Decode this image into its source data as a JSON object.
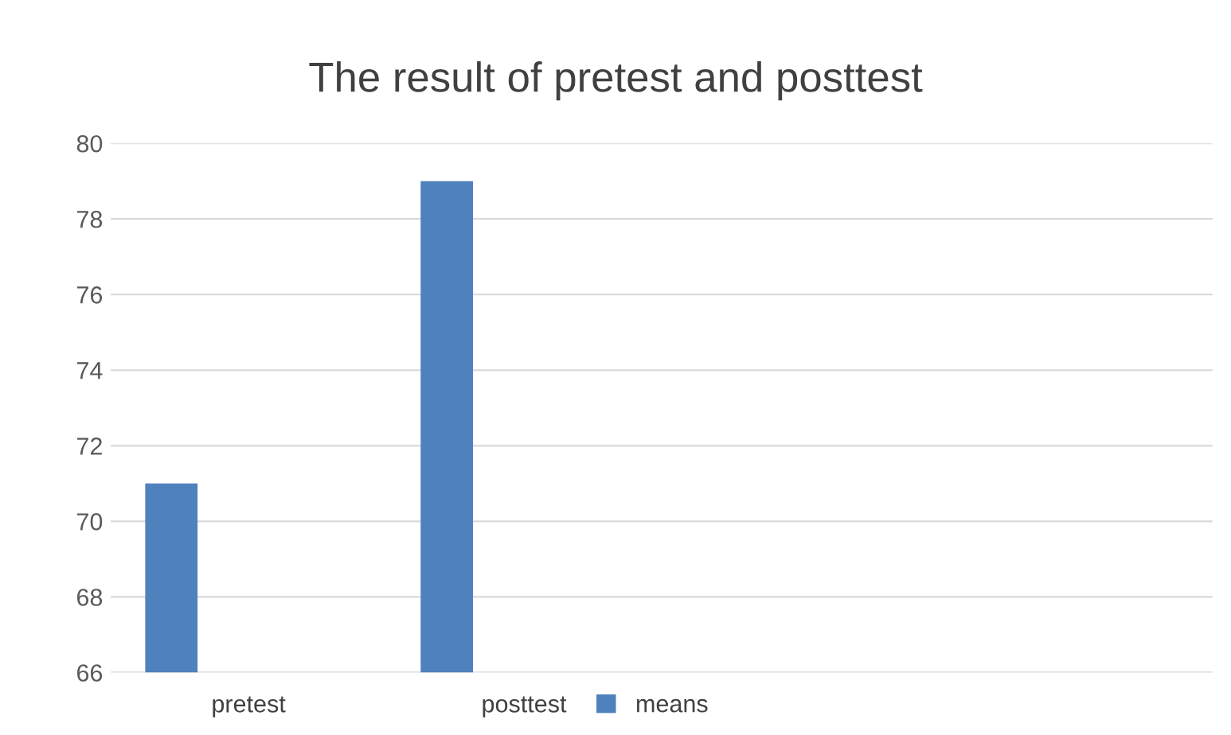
{
  "chart_data": {
    "type": "bar",
    "title": "The result of pretest and posttest",
    "categories": [
      "pretest",
      "posttest",
      null,
      null
    ],
    "series": [
      {
        "name": "means",
        "color": "#4f81bd",
        "values": [
          71,
          79,
          null,
          null
        ]
      }
    ],
    "ylim": [
      66,
      80
    ],
    "yticks": [
      66,
      68,
      70,
      72,
      74,
      76,
      78,
      80
    ],
    "grid": "y",
    "legend": "bottom"
  }
}
